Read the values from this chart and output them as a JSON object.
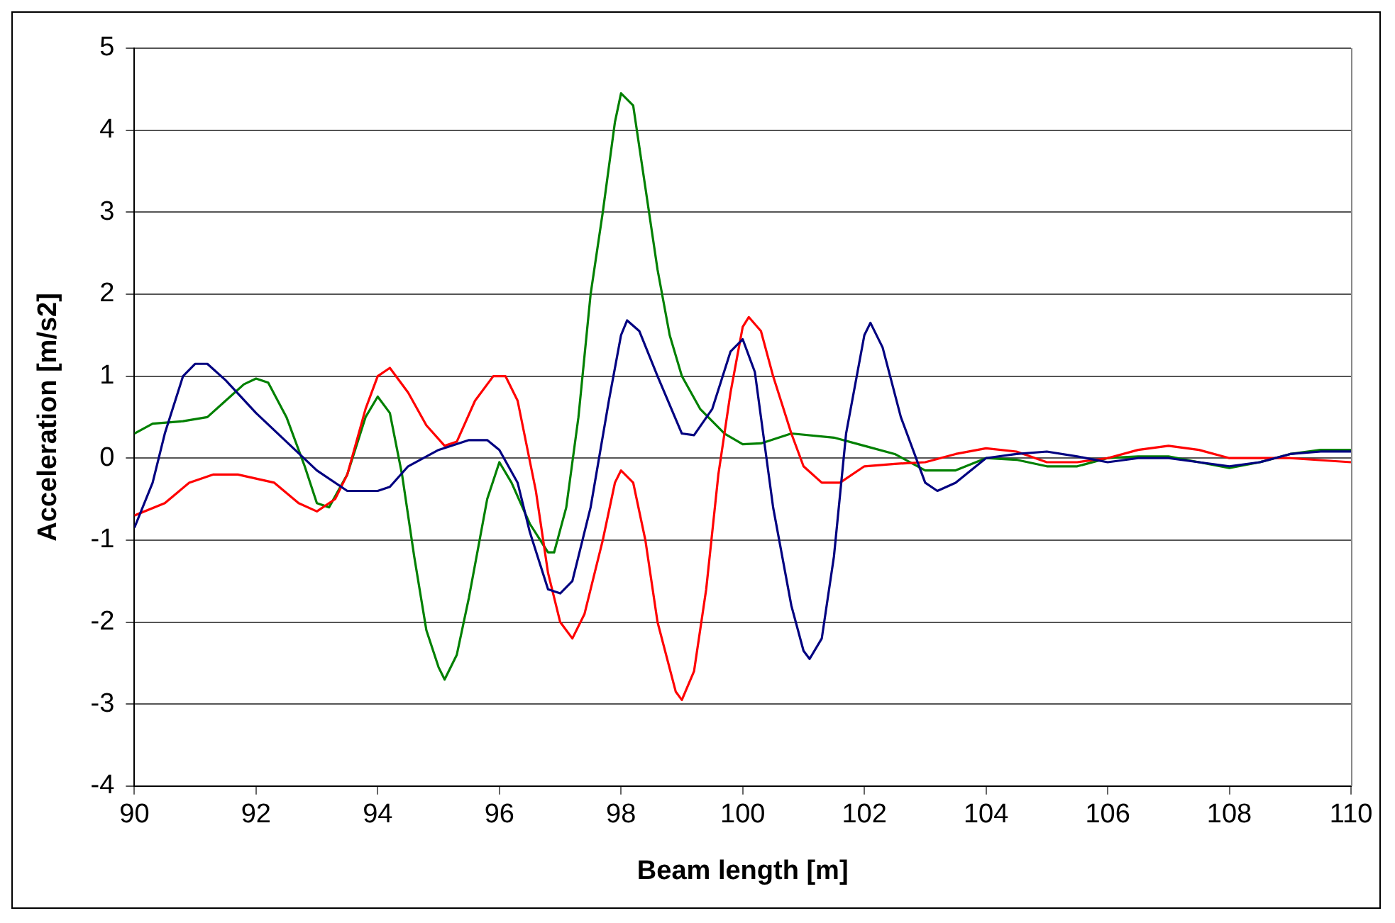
{
  "chart_data": {
    "type": "line",
    "xlabel": "Beam length [m]",
    "ylabel": "Acceleration [m/s2]",
    "xlim": [
      90,
      110
    ],
    "ylim": [
      -4,
      5
    ],
    "xticks": [
      90,
      92,
      94,
      96,
      98,
      100,
      102,
      104,
      106,
      108,
      110
    ],
    "yticks": [
      -4,
      -3,
      -2,
      -1,
      0,
      1,
      2,
      3,
      4,
      5
    ],
    "grid": "y",
    "legend": false,
    "marker": "none",
    "line_style": "solid",
    "series": [
      {
        "color": "#000080",
        "x": [
          90,
          90.3,
          90.5,
          90.8,
          91,
          91.2,
          91.5,
          92,
          92.5,
          93,
          93.5,
          94,
          94.2,
          94.5,
          95,
          95.5,
          95.8,
          96,
          96.3,
          96.5,
          96.8,
          97,
          97.2,
          97.5,
          97.8,
          98,
          98.1,
          98.3,
          98.6,
          99,
          99.2,
          99.5,
          99.8,
          100,
          100.2,
          100.5,
          100.8,
          101,
          101.1,
          101.3,
          101.5,
          101.7,
          102,
          102.1,
          102.3,
          102.6,
          103,
          103.2,
          103.5,
          104,
          104.5,
          105,
          105.5,
          106,
          106.5,
          107,
          107.5,
          108,
          108.5,
          109,
          109.5,
          110
        ],
        "values": [
          -0.85,
          -0.3,
          0.3,
          1.0,
          1.15,
          1.15,
          0.95,
          0.55,
          0.2,
          -0.15,
          -0.4,
          -0.4,
          -0.35,
          -0.1,
          0.1,
          0.22,
          0.22,
          0.1,
          -0.3,
          -0.9,
          -1.6,
          -1.65,
          -1.5,
          -0.6,
          0.7,
          1.5,
          1.68,
          1.55,
          1.0,
          0.3,
          0.28,
          0.6,
          1.3,
          1.45,
          1.05,
          -0.6,
          -1.8,
          -2.35,
          -2.45,
          -2.2,
          -1.2,
          0.3,
          1.5,
          1.65,
          1.35,
          0.5,
          -0.3,
          -0.4,
          -0.3,
          0.0,
          0.05,
          0.08,
          0.02,
          -0.05,
          0.0,
          0.0,
          -0.05,
          -0.1,
          -0.05,
          0.05,
          0.08,
          0.08
        ]
      },
      {
        "color": "#ff0000",
        "x": [
          90,
          90.5,
          90.9,
          91.3,
          91.7,
          92,
          92.3,
          92.7,
          93,
          93.3,
          93.5,
          93.8,
          94,
          94.2,
          94.5,
          94.8,
          95.1,
          95.3,
          95.6,
          95.9,
          96.1,
          96.3,
          96.6,
          96.8,
          97,
          97.2,
          97.4,
          97.7,
          97.9,
          98,
          98.2,
          98.4,
          98.6,
          98.9,
          99,
          99.2,
          99.4,
          99.6,
          99.8,
          100,
          100.1,
          100.3,
          100.5,
          100.8,
          101,
          101.3,
          101.6,
          102,
          102.5,
          103,
          103.5,
          104,
          104.5,
          105,
          105.5,
          106,
          106.5,
          107,
          107.5,
          108,
          109,
          110
        ],
        "values": [
          -0.7,
          -0.55,
          -0.3,
          -0.2,
          -0.2,
          -0.25,
          -0.3,
          -0.55,
          -0.65,
          -0.5,
          -0.2,
          0.6,
          1.0,
          1.1,
          0.8,
          0.4,
          0.15,
          0.2,
          0.7,
          1.0,
          1.0,
          0.7,
          -0.4,
          -1.4,
          -2.0,
          -2.2,
          -1.9,
          -1.0,
          -0.3,
          -0.15,
          -0.3,
          -1.0,
          -2.0,
          -2.85,
          -2.95,
          -2.6,
          -1.6,
          -0.2,
          0.8,
          1.6,
          1.72,
          1.55,
          1.0,
          0.3,
          -0.1,
          -0.3,
          -0.3,
          -0.1,
          -0.07,
          -0.05,
          0.05,
          0.12,
          0.08,
          -0.05,
          -0.05,
          0.0,
          0.1,
          0.15,
          0.1,
          0.0,
          0.0,
          -0.05
        ]
      },
      {
        "color": "#008000",
        "x": [
          90,
          90.3,
          90.8,
          91.2,
          91.5,
          91.8,
          92,
          92.2,
          92.5,
          92.8,
          93,
          93.2,
          93.5,
          93.8,
          94,
          94.2,
          94.4,
          94.6,
          94.8,
          95,
          95.1,
          95.3,
          95.5,
          95.8,
          96,
          96.2,
          96.5,
          96.8,
          96.9,
          97.1,
          97.3,
          97.5,
          97.7,
          97.9,
          98,
          98.2,
          98.4,
          98.6,
          98.8,
          99,
          99.3,
          99.7,
          100,
          100.3,
          100.8,
          101.5,
          102,
          102.5,
          103,
          103.5,
          104,
          104.5,
          105,
          105.5,
          106,
          106.5,
          107,
          107.5,
          108,
          108.5,
          109,
          109.5,
          110
        ],
        "values": [
          0.3,
          0.42,
          0.45,
          0.5,
          0.7,
          0.9,
          0.97,
          0.92,
          0.5,
          -0.1,
          -0.55,
          -0.6,
          -0.2,
          0.5,
          0.75,
          0.55,
          -0.2,
          -1.2,
          -2.1,
          -2.55,
          -2.7,
          -2.4,
          -1.7,
          -0.5,
          -0.05,
          -0.3,
          -0.8,
          -1.15,
          -1.15,
          -0.6,
          0.5,
          2.0,
          3.0,
          4.1,
          4.45,
          4.3,
          3.3,
          2.3,
          1.5,
          1.0,
          0.6,
          0.3,
          0.17,
          0.18,
          0.3,
          0.25,
          0.15,
          0.05,
          -0.15,
          -0.15,
          0.0,
          -0.02,
          -0.1,
          -0.1,
          0.0,
          0.02,
          0.02,
          -0.05,
          -0.12,
          -0.05,
          0.05,
          0.1,
          0.1
        ]
      }
    ]
  }
}
